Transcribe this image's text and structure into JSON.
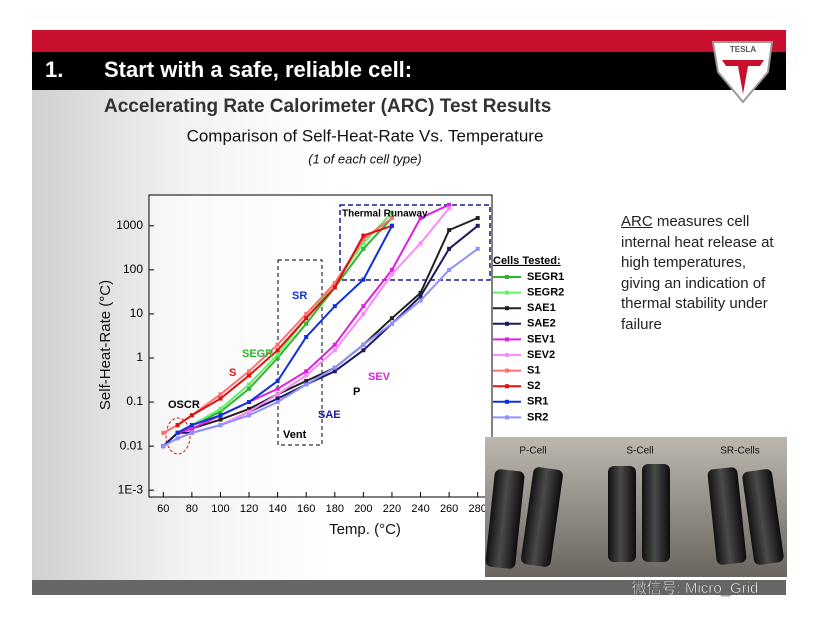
{
  "slide": {
    "number": "1.",
    "heading": "Start with a safe, reliable cell:",
    "subheading": "Accelerating Rate Calorimeter (ARC) Test Results",
    "logo": "TESLA"
  },
  "chart_data": {
    "type": "line",
    "title": "Comparison  of Self-Heat-Rate Vs. Temperature",
    "subtitle": "(1 of each cell type)",
    "x_label": "Temp. (°C)",
    "y_label": "Self-Heat-Rate (°C)",
    "yscale": "log",
    "grid": false,
    "xlim": [
      50,
      290
    ],
    "ylim": [
      0.0007,
      5000
    ],
    "xticks": [
      60,
      80,
      100,
      120,
      140,
      160,
      180,
      200,
      220,
      240,
      260,
      280
    ],
    "yticks": [
      {
        "value": 0.001,
        "label": "1E-3"
      },
      0.01,
      0.1,
      1,
      10,
      100,
      1000
    ],
    "legend_title": "Cells Tested:",
    "x": [
      60,
      70,
      80,
      100,
      120,
      140,
      160,
      180,
      200,
      220,
      240,
      260,
      280
    ],
    "series": [
      {
        "name": "SEGR1",
        "color": "#2db52d",
        "values": [
          null,
          0.02,
          0.03,
          0.06,
          0.2,
          1,
          6,
          40,
          300,
          1500,
          null,
          null,
          null
        ]
      },
      {
        "name": "SEGR2",
        "color": "#66ee66",
        "values": [
          null,
          0.02,
          0.03,
          0.07,
          0.25,
          1.2,
          8,
          50,
          400,
          2000,
          null,
          null,
          null
        ]
      },
      {
        "name": "SAE1",
        "color": "#222222",
        "values": [
          0.01,
          0.02,
          0.025,
          0.04,
          0.07,
          0.15,
          0.3,
          0.6,
          2,
          8,
          30,
          800,
          1500
        ]
      },
      {
        "name": "SAE2",
        "color": "#1a1a5e",
        "values": [
          0.01,
          0.02,
          0.02,
          0.03,
          0.06,
          0.12,
          0.25,
          0.5,
          1.5,
          6,
          25,
          300,
          1000
        ]
      },
      {
        "name": "SEV1",
        "color": "#e020e0",
        "values": [
          null,
          0.02,
          0.025,
          0.05,
          0.1,
          0.2,
          0.5,
          2,
          15,
          100,
          1500,
          3000,
          null
        ]
      },
      {
        "name": "SEV2",
        "color": "#ff88ff",
        "values": [
          null,
          0.015,
          0.02,
          0.03,
          0.06,
          0.15,
          0.4,
          1.5,
          10,
          80,
          400,
          2500,
          null
        ]
      },
      {
        "name": "S1",
        "color": "#ff7070",
        "values": [
          0.02,
          0.03,
          0.05,
          0.15,
          0.5,
          2,
          10,
          50,
          500,
          1500,
          null,
          null,
          null
        ]
      },
      {
        "name": "S2",
        "color": "#e01010",
        "values": [
          null,
          0.03,
          0.05,
          0.12,
          0.4,
          1.5,
          8,
          40,
          600,
          1000,
          null,
          null,
          null
        ]
      },
      {
        "name": "SR1",
        "color": "#1030e0",
        "values": [
          null,
          0.02,
          0.03,
          0.05,
          0.1,
          0.3,
          3,
          15,
          60,
          1000,
          null,
          null,
          null
        ]
      },
      {
        "name": "SR2",
        "color": "#9090ff",
        "values": [
          0.01,
          0.015,
          0.02,
          0.03,
          0.05,
          0.1,
          0.25,
          0.6,
          2,
          6,
          20,
          100,
          300
        ]
      }
    ],
    "annotations": [
      {
        "text": "Thermal Runaway",
        "color": "#000000"
      },
      {
        "text": "SEGR",
        "color": "#2db52d"
      },
      {
        "text": "S",
        "color": "#e01010"
      },
      {
        "text": "SR",
        "color": "#1030e0"
      },
      {
        "text": "Vent",
        "color": "#000000"
      },
      {
        "text": "SAE",
        "color": "#1a1a9e"
      },
      {
        "text": "P",
        "color": "#000000"
      },
      {
        "text": "SEV",
        "color": "#e020e0"
      },
      {
        "text": "OSCR",
        "color": "#000000"
      }
    ]
  },
  "side_note": {
    "term": "ARC",
    "text": "measures cell internal heat release at high temperatures, giving an indication of thermal stability under failure"
  },
  "photo": {
    "labels": [
      "P-Cell",
      "S-Cell",
      "SR-Cells"
    ]
  },
  "watermark": "微信号: Micro_Grid"
}
